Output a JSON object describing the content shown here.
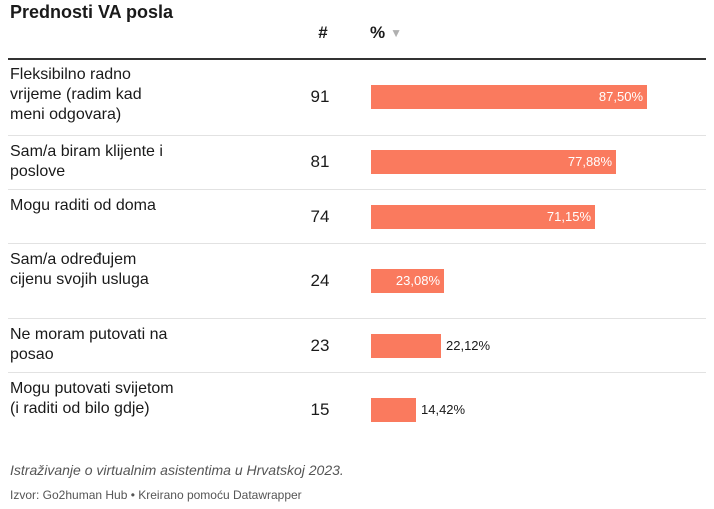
{
  "chart_data": {
    "type": "table",
    "title": "",
    "columns": [
      {
        "key": "label",
        "header": "Prednosti VA posla"
      },
      {
        "key": "count",
        "header": "#"
      },
      {
        "key": "percent",
        "header": "%"
      }
    ],
    "sort": {
      "column": "percent",
      "direction": "desc"
    },
    "bar_color": "#fa7a5e",
    "xlim": [
      0,
      100
    ],
    "rows": [
      {
        "label": "Fleksibilno radno vrijeme (radim kad meni odgovara)",
        "count": "91",
        "value": 87.5,
        "value_label": "87,50%"
      },
      {
        "label": "Sam/a biram klijente i poslove",
        "count": "81",
        "value": 77.88,
        "value_label": "77,88%"
      },
      {
        "label": "Mogu raditi od doma",
        "count": "74",
        "value": 71.15,
        "value_label": "71,15%"
      },
      {
        "label": "Sam/a određujem cijenu svojih usluga",
        "count": "24",
        "value": 23.08,
        "value_label": "23,08%"
      },
      {
        "label": "Ne moram putovati na posao",
        "count": "23",
        "value": 22.12,
        "value_label": "22,12%"
      },
      {
        "label": "Mogu putovati svijetom (i raditi od bilo gdje)",
        "count": "15",
        "value": 14.42,
        "value_label": "14,42%"
      }
    ],
    "notes": "Istraživanje o virtualnim asistentima u Hrvatskoj 2023.",
    "byline": "Izvor: Go2human Hub • Kreirano pomoću Datawrapper"
  },
  "sort_icon": "sort-descending-icon"
}
